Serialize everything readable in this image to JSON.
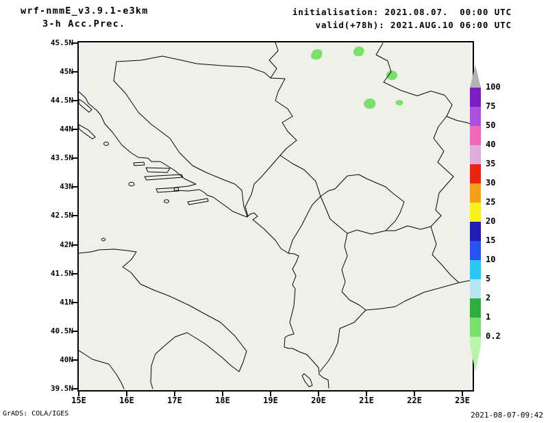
{
  "header": {
    "model": "wrf-nmmE_v3.9.1-e3km",
    "product": "3-h Acc.Prec.",
    "init": "initialisation: 2021.08.07.  00:00 UTC",
    "valid": "valid(+78h): 2021.AUG.10 06:00 UTC"
  },
  "axes": {
    "lat_ticks": [
      "45.5N",
      "45N",
      "44.5N",
      "44N",
      "43.5N",
      "43N",
      "42.5N",
      "42N",
      "41.5N",
      "41N",
      "40.5N",
      "40N",
      "39.5N"
    ],
    "lon_ticks": [
      "15E",
      "16E",
      "17E",
      "18E",
      "19E",
      "20E",
      "21E",
      "22E",
      "23E"
    ]
  },
  "colorbar": {
    "labels": [
      "100",
      "75",
      "50",
      "40",
      "35",
      "30",
      "25",
      "20",
      "15",
      "10",
      "5",
      "2",
      "1",
      "0.2"
    ],
    "segments_top_to_bottom": [
      {
        "range": "above-100",
        "color": "#b3b3b3",
        "shape": "triangle-up"
      },
      {
        "range": "75-100",
        "color": "#7c1ec4"
      },
      {
        "range": "50-75",
        "color": "#ae4fe0"
      },
      {
        "range": "40-50",
        "color": "#f268b8"
      },
      {
        "range": "35-40",
        "color": "#e0aede"
      },
      {
        "range": "30-35",
        "color": "#ee2212"
      },
      {
        "range": "25-30",
        "color": "#f5a016"
      },
      {
        "range": "20-25",
        "color": "#f5f216"
      },
      {
        "range": "15-20",
        "color": "#211cb4"
      },
      {
        "range": "10-15",
        "color": "#2353f0"
      },
      {
        "range": "5-10",
        "color": "#28c8f5"
      },
      {
        "range": "2-5",
        "color": "#b4e6f5"
      },
      {
        "range": "1-2",
        "color": "#2fae3e"
      },
      {
        "range": "0.2-1",
        "color": "#79e06a"
      },
      {
        "range": "below-0.2",
        "color": "#b9f5a9",
        "shape": "triangle-down"
      }
    ]
  },
  "map": {
    "precip_fill": "#79e06a"
  },
  "footer": {
    "credit": "GrADS: COLA/IGES",
    "timestamp": "2021-08-07-09:42"
  },
  "chart_data": {
    "type": "heatmap",
    "title": "wrf-nmmE_v3.9.1-e3km 3-h Acc.Prec.",
    "x_ticks": [
      "15E",
      "16E",
      "17E",
      "18E",
      "19E",
      "20E",
      "21E",
      "22E",
      "23E"
    ],
    "y_ticks": [
      "45.5N",
      "45N",
      "44.5N",
      "44N",
      "43.5N",
      "43N",
      "42.5N",
      "42N",
      "41.5N",
      "41N",
      "40.5N",
      "40N",
      "39.5N"
    ],
    "x_range_deg_east": [
      15.0,
      23.2
    ],
    "y_range_deg_north": [
      39.47,
      45.51
    ],
    "scale_levels_mm": [
      0.2,
      1,
      2,
      5,
      10,
      15,
      20,
      25,
      30,
      35,
      40,
      50,
      75,
      100
    ],
    "legend_position": "right",
    "shaded_cells": [
      {
        "lon_e": 19.96,
        "lat_n": 45.31,
        "level_mm": "0.2-1"
      },
      {
        "lon_e": 20.83,
        "lat_n": 45.37,
        "level_mm": "0.2-1"
      },
      {
        "lon_e": 21.54,
        "lat_n": 44.94,
        "level_mm": "0.2-1"
      },
      {
        "lon_e": 21.07,
        "lat_n": 44.44,
        "level_mm": "0.2-1"
      },
      {
        "lon_e": 21.69,
        "lat_n": 44.47,
        "level_mm": "0.2-1"
      }
    ]
  }
}
